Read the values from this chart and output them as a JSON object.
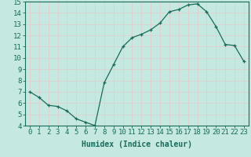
{
  "x": [
    0,
    1,
    2,
    3,
    4,
    5,
    6,
    7,
    8,
    9,
    10,
    11,
    12,
    13,
    14,
    15,
    16,
    17,
    18,
    19,
    20,
    21,
    22,
    23
  ],
  "y": [
    7.0,
    6.5,
    5.8,
    5.7,
    5.3,
    4.6,
    4.3,
    4.0,
    7.8,
    9.4,
    11.0,
    11.8,
    12.1,
    12.5,
    13.1,
    14.1,
    14.3,
    14.7,
    14.8,
    14.1,
    12.8,
    11.2,
    11.1,
    9.7
  ],
  "line_color": "#1a6b5a",
  "marker": "+",
  "marker_color": "#1a6b5a",
  "bg_color": "#c5e8e0",
  "grid_color": "#e0d0d0",
  "xlabel": "Humidex (Indice chaleur)",
  "xlabel_fontsize": 7,
  "tick_fontsize": 6.5,
  "ylim": [
    4,
    15
  ],
  "xlim": [
    -0.5,
    23.5
  ],
  "yticks": [
    4,
    5,
    6,
    7,
    8,
    9,
    10,
    11,
    12,
    13,
    14,
    15
  ],
  "xticks": [
    0,
    1,
    2,
    3,
    4,
    5,
    6,
    7,
    8,
    9,
    10,
    11,
    12,
    13,
    14,
    15,
    16,
    17,
    18,
    19,
    20,
    21,
    22,
    23
  ]
}
